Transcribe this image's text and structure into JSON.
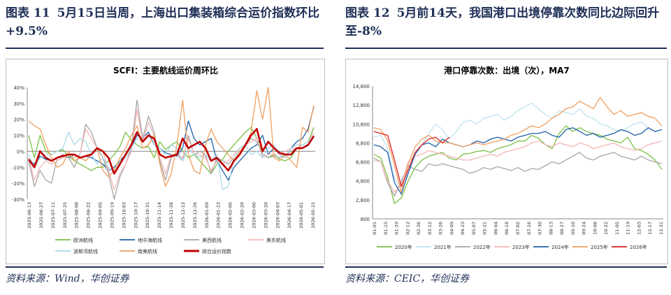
{
  "figures": [
    {
      "title_label": "图表 11",
      "title_text": "5月15日当周，上海出口集装箱综合运价指数环比+9.5%",
      "source": "资料来源：Wind，华创证券"
    },
    {
      "title_label": "图表 12",
      "title_text": "5月前14天，我国港口出境停靠次数同比边际回升至-8%",
      "source": "资料来源：CEIC，华创证券"
    }
  ],
  "chart_data": [
    {
      "type": "line",
      "title": "SCFI：主要航线运价周环比",
      "ylim": [
        -30,
        40
      ],
      "yticks": [
        "40%",
        "30%",
        "20%",
        "10%",
        "0%",
        "-10%",
        "-20%",
        "-30%"
      ],
      "x_tick_labels": [
        "2025-06-13",
        "2025-06-27",
        "2025-07-11",
        "2025-07-25",
        "2025-08-08",
        "2025-08-22",
        "2025-09-05",
        "2025-09-19",
        "2025-10-03",
        "2025-10-17",
        "2025-10-31",
        "2025-11-14",
        "2025-11-28",
        "2025-12-12",
        "2025-12-26",
        "2026-01-09",
        "2026-01-23",
        "2026-02-06",
        "2026-02-20",
        "2026-03-06",
        "2026-03-20",
        "2026-04-03",
        "2026-04-17",
        "2026-05-01",
        "2026-05-15"
      ],
      "legend_position": "bottom",
      "series": [
        {
          "name": "欧洲航线",
          "color": "#7ac143",
          "values": [
            10,
            -4,
            10,
            0,
            -2,
            0,
            1,
            -3,
            -6,
            -8,
            -10,
            -12,
            -10,
            -10,
            -6,
            -2,
            3,
            12,
            7,
            4,
            2,
            3,
            -4,
            6,
            1,
            4,
            6,
            0,
            -4,
            -2,
            -6,
            -10,
            -14,
            -8,
            -5,
            0,
            4,
            8,
            12,
            15,
            8,
            -2,
            -4,
            -2,
            -5,
            -6,
            -4,
            2,
            4,
            6,
            15
          ]
        },
        {
          "name": "地中海航线",
          "color": "#1f5fa8",
          "values": [
            -5,
            -8,
            -3,
            -5,
            -6,
            -4,
            -3,
            -4,
            -2,
            -4,
            -3,
            -4,
            -6,
            -8,
            -12,
            -10,
            -6,
            -2,
            3,
            10,
            8,
            12,
            4,
            2,
            -1,
            -2,
            -3,
            2,
            19,
            8,
            4,
            6,
            8,
            -6,
            -12,
            -18,
            -10,
            -6,
            -2,
            2,
            4,
            10,
            -2,
            2,
            -2,
            -4,
            2,
            6,
            8,
            14,
            28
          ]
        },
        {
          "name": "美西航线",
          "color": "#a6a6a6",
          "values": [
            -6,
            -22,
            -12,
            -18,
            -20,
            -4,
            -2,
            -4,
            -10,
            -2,
            17,
            12,
            2,
            -4,
            -14,
            -30,
            -16,
            -8,
            2,
            32,
            8,
            22,
            12,
            -6,
            -18,
            -4,
            -2,
            -6,
            10,
            -2,
            0,
            -2,
            -14,
            -4,
            -6,
            -8,
            -4,
            2,
            4,
            8,
            6,
            -2,
            -4,
            -3,
            -4,
            -2,
            0,
            2,
            4,
            6,
            10
          ]
        },
        {
          "name": "美东航线",
          "color": "#f4b6b6",
          "values": [
            -4,
            -18,
            -10,
            -6,
            -8,
            -6,
            -4,
            -2,
            -4,
            -2,
            14,
            8,
            2,
            0,
            -12,
            -24,
            -14,
            -8,
            0,
            26,
            6,
            18,
            10,
            -4,
            -14,
            -2,
            -2,
            -4,
            8,
            -2,
            -2,
            -4,
            -12,
            -6,
            -8,
            -6,
            -2,
            2,
            4,
            6,
            8,
            -4,
            -2,
            -2,
            -2,
            0,
            2,
            2,
            4,
            6,
            12
          ]
        },
        {
          "name": "波斯湾航线",
          "color": "#a9d8e8",
          "values": [
            -2,
            -10,
            -4,
            -2,
            -2,
            0,
            2,
            12,
            4,
            8,
            6,
            -2,
            -8,
            -4,
            -10,
            -14,
            -6,
            -4,
            2,
            8,
            6,
            10,
            4,
            2,
            -2,
            4,
            2,
            -6,
            2,
            -2,
            -4,
            -2,
            -6,
            -2,
            -24,
            -22,
            -4,
            2,
            4,
            -2,
            0,
            -4,
            2,
            4,
            -2,
            -4,
            2,
            4,
            4,
            6,
            10
          ]
        },
        {
          "name": "南美航线",
          "color": "#f0a060",
          "values": [
            19,
            16,
            14,
            4,
            -4,
            -10,
            -8,
            0,
            -6,
            -4,
            -6,
            -2,
            2,
            -12,
            -16,
            -12,
            -4,
            2,
            10,
            16,
            2,
            4,
            10,
            -8,
            -22,
            -14,
            4,
            32,
            -2,
            -12,
            -14,
            4,
            14,
            6,
            2,
            -2,
            -6,
            0,
            4,
            12,
            38,
            20,
            40,
            -4,
            -6,
            -2,
            -6,
            -10,
            15,
            12,
            29
          ]
        },
        {
          "name": "综合运价指数",
          "color": "#c00000",
          "values": [
            -5,
            -10,
            0,
            -4,
            -6,
            -4,
            -3,
            -2,
            -2,
            -4,
            -3,
            -2,
            2,
            0,
            -4,
            -14,
            -8,
            -2,
            4,
            12,
            6,
            10,
            8,
            -2,
            -4,
            -3,
            -2,
            8,
            2,
            4,
            6,
            2,
            -6,
            -4,
            -8,
            -12,
            -6,
            -2,
            4,
            10,
            14,
            0,
            6,
            2,
            -1,
            -2,
            -2,
            2,
            2,
            4,
            9.5
          ]
        }
      ]
    },
    {
      "type": "line",
      "title": "港口停靠次数：出境（次），MA7",
      "ylim": [
        800,
        14800
      ],
      "yticks": [
        "14,800",
        "12,800",
        "10,800",
        "8,800",
        "6,800",
        "4,800",
        "2,800",
        "800"
      ],
      "x_tick_labels": [
        "01-01",
        "01-15",
        "01-29",
        "02-12",
        "02-26",
        "03-12",
        "03-26",
        "04-09",
        "04-23",
        "05-07",
        "05-21",
        "06-04",
        "06-18",
        "07-02",
        "07-16",
        "07-30",
        "08-13",
        "08-27",
        "09-10",
        "09-24",
        "10-08",
        "10-22",
        "11-05",
        "11-19",
        "12-03",
        "12-17",
        "12-31"
      ],
      "legend_position": "bottom",
      "series": [
        {
          "name": "2020年",
          "color": "#7ac143",
          "values": [
            7600,
            7200,
            5200,
            2400,
            3000,
            4800,
            6200,
            7000,
            7400,
            7600,
            7800,
            7200,
            7000,
            7600,
            7700,
            7900,
            8000,
            7800,
            8200,
            8400,
            8600,
            9000,
            9000,
            9600,
            9300,
            8600,
            8200,
            9800,
            10600,
            10000,
            10400,
            10000,
            9800,
            9600,
            9200,
            9000,
            8800,
            9400,
            8200,
            8000,
            7600,
            7000,
            6000
          ]
        },
        {
          "name": "2021年",
          "color": "#bfe3f0",
          "values": [
            9400,
            9600,
            8200,
            5000,
            4200,
            5600,
            7600,
            8600,
            9800,
            10800,
            10200,
            9200,
            10000,
            11000,
            11200,
            10800,
            11400,
            11600,
            11800,
            11200,
            11600,
            12200,
            12600,
            13000,
            12400,
            11800,
            11400,
            12200,
            12000,
            11800,
            12400,
            11600,
            11400,
            10800,
            10600,
            10200,
            10000,
            10400,
            10800,
            11000,
            10400,
            10000,
            10200
          ]
        },
        {
          "name": "2022年",
          "color": "#a6a6a6",
          "values": [
            7200,
            6800,
            4600,
            3200,
            4800,
            6400,
            6000,
            5800,
            6600,
            6400,
            6600,
            6400,
            6200,
            6000,
            5600,
            5800,
            6200,
            6000,
            6300,
            6100,
            5900,
            6200,
            5800,
            6100,
            6000,
            6400,
            6800,
            6600,
            7000,
            7400,
            7800,
            7200,
            7000,
            7400,
            7600,
            7800,
            7400,
            7200,
            7000,
            7400,
            7000,
            6800,
            6600
          ]
        },
        {
          "name": "2023年",
          "color": "#f4b6b6",
          "values": [
            7000,
            6800,
            4800,
            3600,
            4400,
            6800,
            7400,
            7600,
            8000,
            7800,
            7600,
            7400,
            7200,
            7000,
            7000,
            7200,
            7400,
            7600,
            7400,
            7800,
            8000,
            8200,
            8400,
            8800,
            9000,
            8600,
            8400,
            8800,
            8600,
            8400,
            8800,
            8600,
            8200,
            8400,
            8600,
            8800,
            8400,
            8200,
            8000,
            8200,
            8600,
            8800,
            9000
          ]
        },
        {
          "name": "2024年",
          "color": "#1f5fa8",
          "values": [
            8600,
            8400,
            7800,
            4600,
            3400,
            5600,
            7600,
            8600,
            8800,
            8400,
            9200,
            8800,
            8600,
            8400,
            8600,
            9000,
            8800,
            9200,
            9400,
            9200,
            9000,
            9400,
            9600,
            9800,
            9800,
            10000,
            9600,
            9400,
            10200,
            10400,
            10000,
            9600,
            9800,
            9400,
            9600,
            9800,
            10200,
            10000,
            9600,
            9800,
            10400,
            10000,
            10200
          ]
        },
        {
          "name": "2025年",
          "color": "#f0a060",
          "values": [
            10400,
            10200,
            9000,
            6400,
            3600,
            6600,
            8400,
            9200,
            9600,
            9000,
            8800,
            8800,
            8600,
            8400,
            8600,
            8800,
            8600,
            8800,
            9000,
            9200,
            9600,
            9800,
            10200,
            10600,
            10400,
            10800,
            11400,
            11800,
            12400,
            12600,
            13200,
            12800,
            12400,
            13600,
            12600,
            11800,
            12200,
            11600,
            11800,
            12000,
            11600,
            11400,
            10600
          ]
        },
        {
          "name": "2026年",
          "color": "#e02020",
          "values": [
            10000,
            9800,
            9600,
            7000,
            4200,
            6000,
            7800,
            8600,
            9200,
            9400,
            8800,
            9400
          ]
        }
      ]
    }
  ]
}
